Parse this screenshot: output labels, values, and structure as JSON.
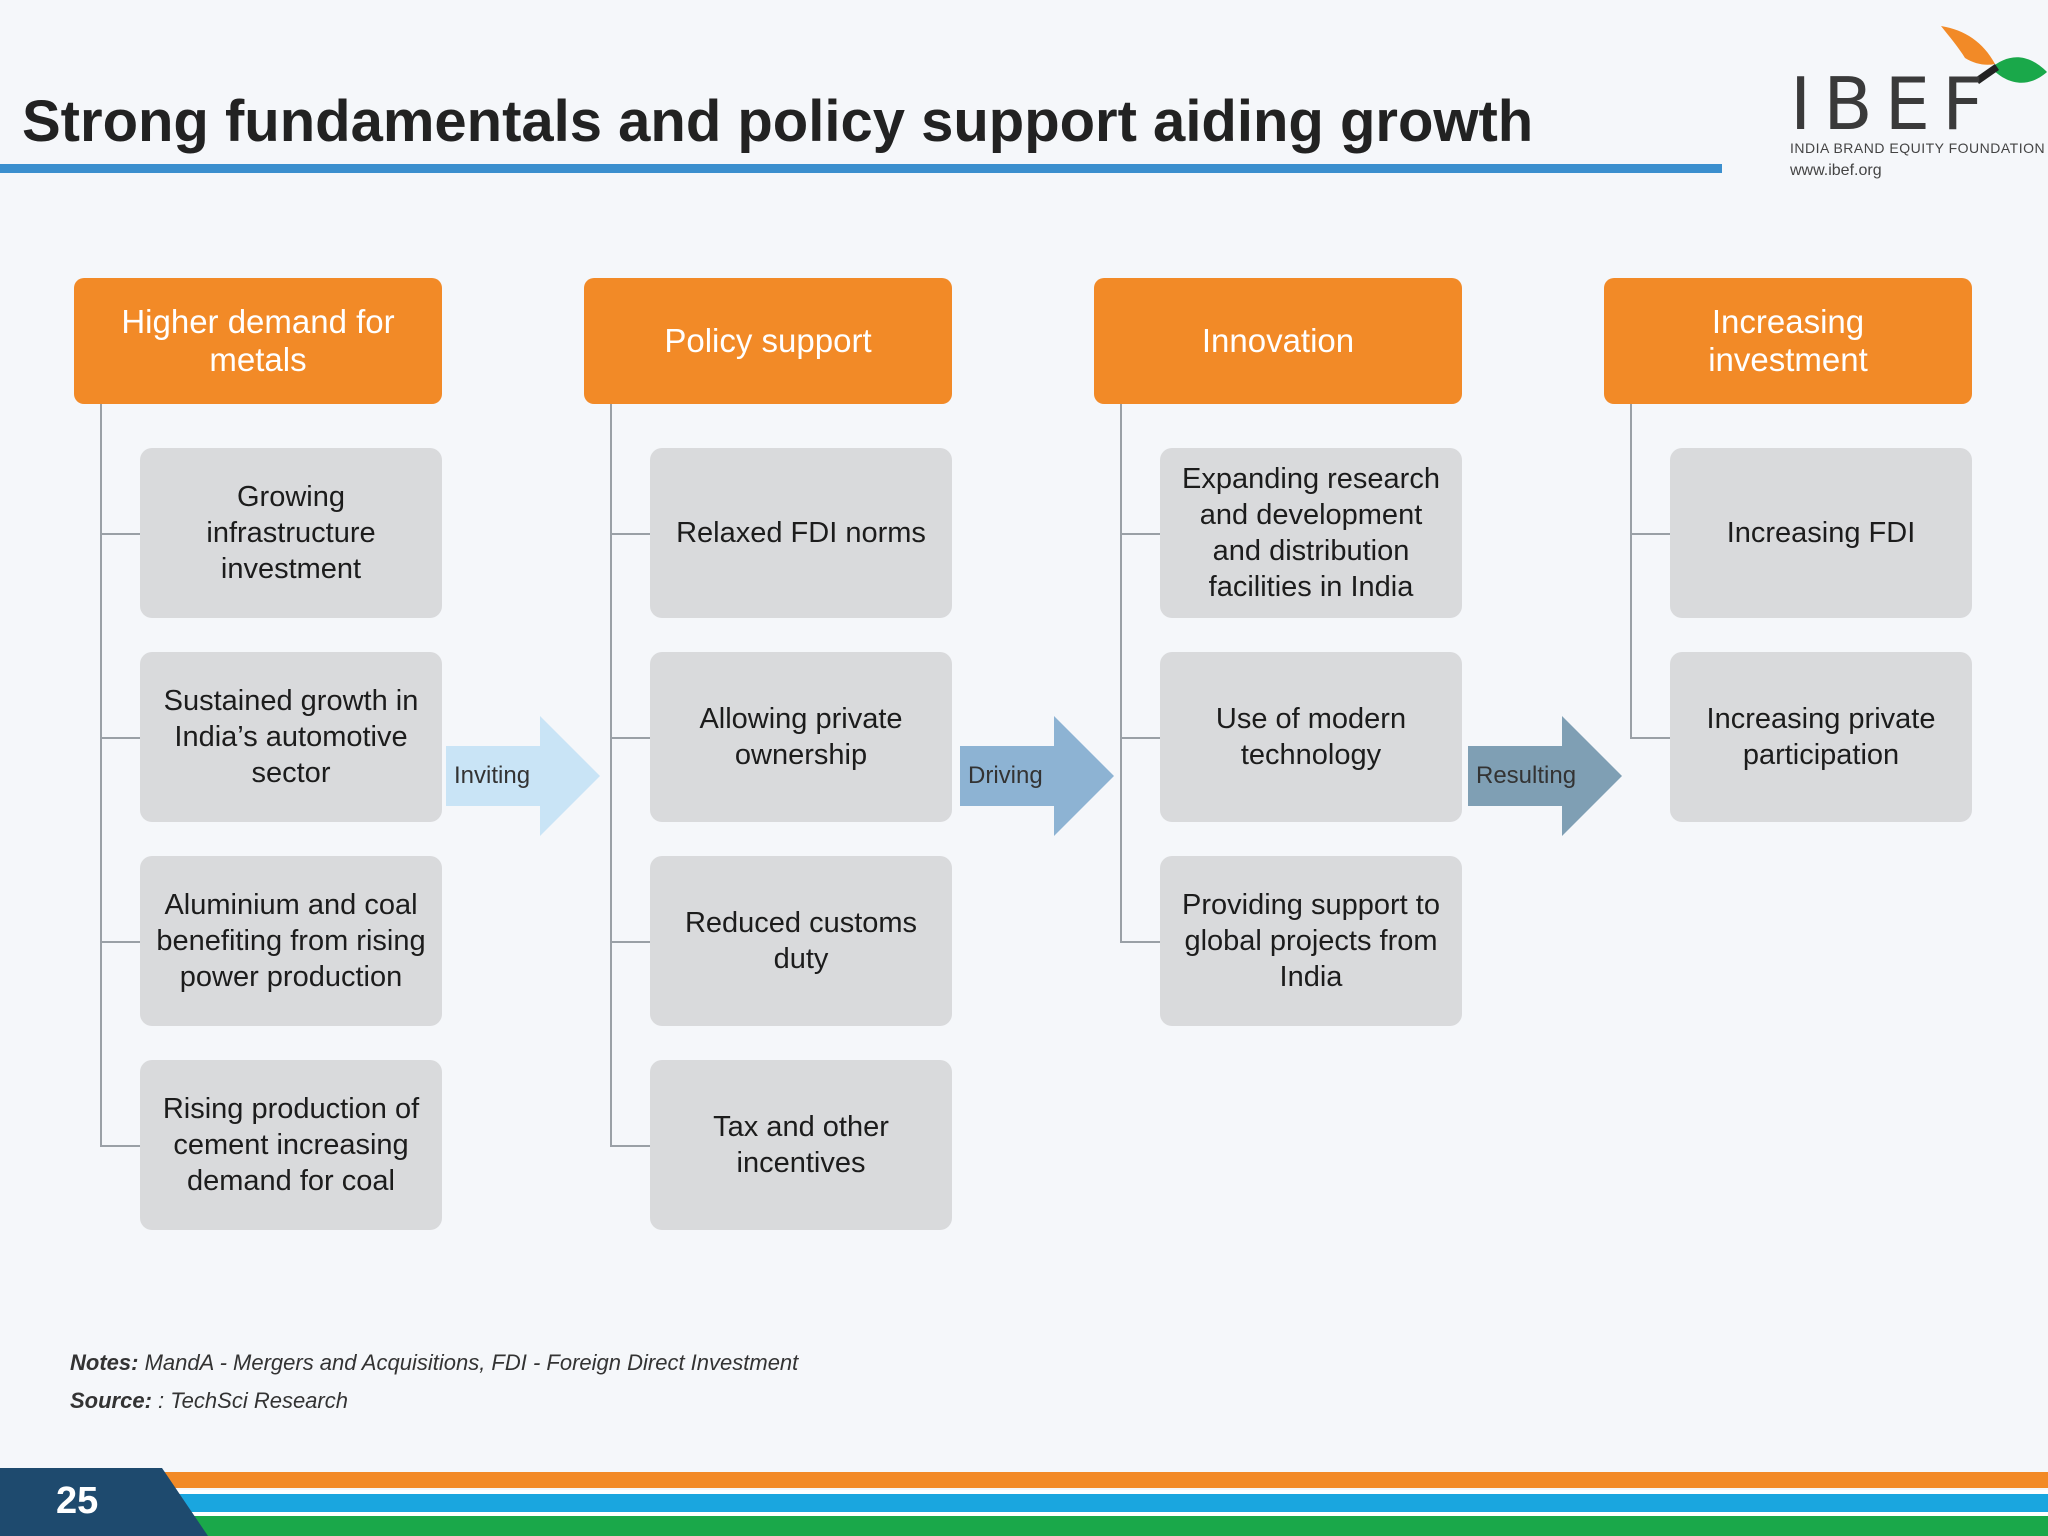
{
  "title": "Strong fundamentals and policy support aiding growth",
  "logo": {
    "text": "IBEF",
    "subtitle": "INDIA BRAND EQUITY FOUNDATION",
    "url": "www.ibef.org"
  },
  "columns": [
    {
      "header": "Higher demand for metals",
      "items": [
        "Growing infrastructure investment",
        "Sustained growth in India’s automotive sector",
        "Aluminium and coal benefiting from rising power production",
        "Rising production of cement increasing demand for coal"
      ]
    },
    {
      "header": "Policy support",
      "items": [
        "Relaxed FDI norms",
        "Allowing private ownership",
        "Reduced customs duty",
        "Tax and other incentives"
      ]
    },
    {
      "header": "Innovation",
      "items": [
        "Expanding research and development and distribution facilities in India",
        "Use of modern technology",
        "Providing support to global projects from India"
      ]
    },
    {
      "header": "Increasing investment",
      "items": [
        "Increasing FDI",
        "Increasing private participation"
      ]
    }
  ],
  "arrows": [
    {
      "label": "Inviting",
      "color": "#c9e4f6"
    },
    {
      "label": "Driving",
      "color": "#8db3d3"
    },
    {
      "label": "Resulting",
      "color": "#7f9fb4"
    }
  ],
  "notes": {
    "label": "Notes:",
    "text": " MandA - Mergers and Acquisitions, FDI - Foreign Direct Investment"
  },
  "source": {
    "label": "Source:",
    "text": " : TechSci Research"
  },
  "page_number": "25",
  "colors": {
    "header_orange": "#f28a27",
    "item_gray": "#d9dadc",
    "title_rule_blue": "#3b8fce",
    "footer_navy": "#1e4a6e",
    "stripe_orange": "#f28a27",
    "stripe_blue": "#1aa6df",
    "stripe_green": "#1aa84a"
  }
}
